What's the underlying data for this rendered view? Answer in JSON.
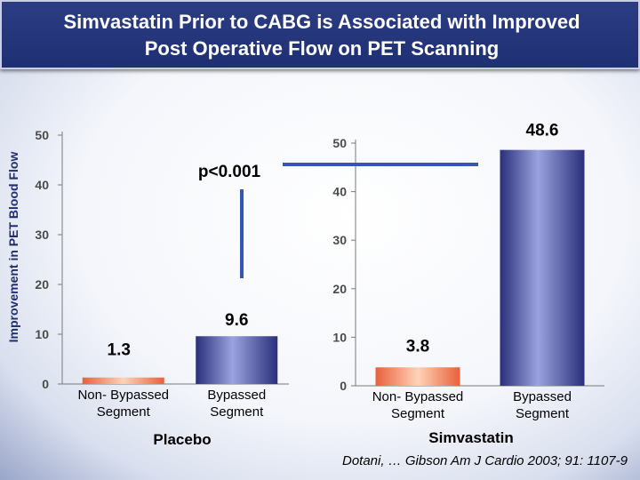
{
  "header": {
    "title_line1": "Simvastatin Prior to CABG is Associated with Improved",
    "title_line2": "Post Operative Flow on PET Scanning"
  },
  "citation": "Dotani, … Gibson Am J Cardio 2003; 91: 1107-9",
  "annotation": "p<0.001",
  "colors": {
    "title_bg": "#1f2f73",
    "bar_non_bypassed": "#e8603a",
    "bar_bypassed": "#3a3f9c",
    "connector": "#3557b3"
  },
  "chart_data": {
    "type": "bar",
    "ylabel": "Improvement in PET Blood Flow",
    "ylim": [
      0,
      50
    ],
    "yticks": [
      0,
      10,
      20,
      30,
      40,
      50
    ],
    "grid": false,
    "groups": [
      {
        "name": "Placebo",
        "categories": [
          "Non- Bypassed Segment",
          "Bypassed Segment"
        ],
        "category_lines": [
          [
            "Non- Bypassed",
            "Segment"
          ],
          [
            "Bypassed",
            "Segment"
          ]
        ],
        "values": [
          1.3,
          9.6
        ],
        "value_labels": [
          "1.3",
          "9.6"
        ]
      },
      {
        "name": "Simvastatin",
        "categories": [
          "Non- Bypassed Segment",
          "Bypassed Segment"
        ],
        "category_lines": [
          [
            "Non- Bypassed",
            "Segment"
          ],
          [
            "Bypassed",
            "Segment"
          ]
        ],
        "values": [
          3.8,
          48.6
        ],
        "value_labels": [
          "3.8",
          "48.6"
        ]
      }
    ]
  }
}
